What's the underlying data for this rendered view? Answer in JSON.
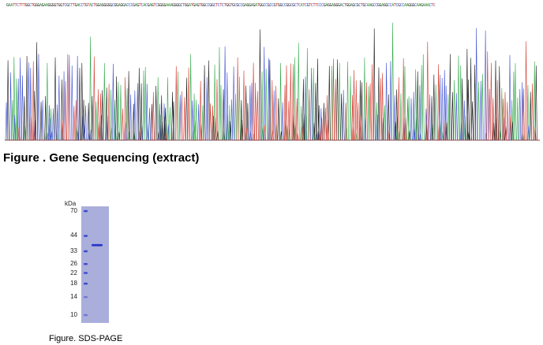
{
  "sequence_strip": {
    "text": "GAATTCTTTGGCTGGGAGAAGGGGTGGTCGCTTGACCTGTACTGGAGGGGGCGGAGGACCCGAGTCACGAGTCGGGGAAAGGGGCTGGATGAGTGGCCGGCTCTCTGGTGCGCCGAGGAGATGGCCGCCGTGGCCGGCGCTCATCGTCTTCCCGAGGAGGGACTGGAGCGCTGCAAGCCGGAGGCCATCGCCAAGGGCAAGAAACTC",
    "colors": {
      "A": "#2e8b2e",
      "C": "#2f4fbf",
      "G": "#222222",
      "T": "#c8302a"
    }
  },
  "chromatogram": {
    "trace_colors": {
      "A": "#31a84a",
      "C": "#3b4fd0",
      "G": "#1a1a1a",
      "T": "#d23a2e"
    }
  },
  "figure1": {
    "caption": "Figure . Gene Sequencing (extract)"
  },
  "gel": {
    "unit": "kDa",
    "markers": [
      {
        "label": "70",
        "mw": 70
      },
      {
        "label": "44",
        "mw": 44
      },
      {
        "label": "33",
        "mw": 33
      },
      {
        "label": "26",
        "mw": 26
      },
      {
        "label": "22",
        "mw": 22
      },
      {
        "label": "18",
        "mw": 18
      },
      {
        "label": "14",
        "mw": 14
      },
      {
        "label": "10",
        "mw": 10
      }
    ],
    "sample_band_kda": 37,
    "lane_color": "#a9aedb",
    "band_color": "#2a36c8"
  },
  "figure2": {
    "caption": "Figure. SDS-PAGE"
  }
}
